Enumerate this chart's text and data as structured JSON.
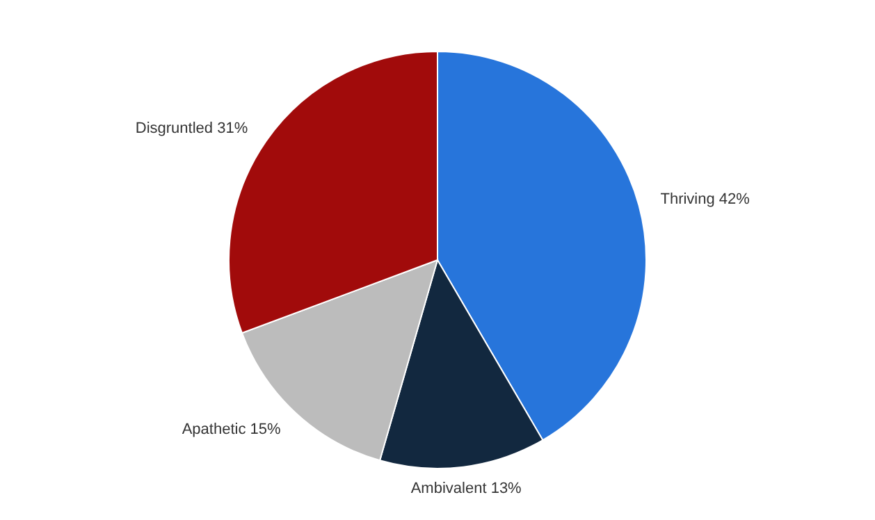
{
  "chart_data": {
    "type": "pie",
    "categories": [
      "Thriving",
      "Ambivalent",
      "Apathetic",
      "Disgruntled"
    ],
    "values": [
      42,
      13,
      15,
      31
    ],
    "colors": [
      "#2775db",
      "#12283f",
      "#bcbcbc",
      "#a10b0b"
    ],
    "value_labels": [
      "42%",
      "13%",
      "15%",
      "31%"
    ],
    "legend": false
  }
}
